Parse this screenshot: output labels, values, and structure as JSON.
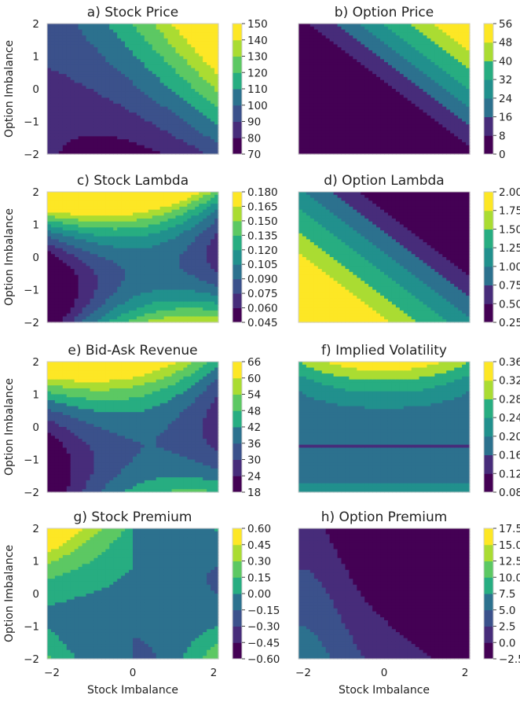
{
  "figure": {
    "x_axis_label": "Stock Imbalance",
    "y_axis_label": "Option Imbalance",
    "x_tick_labels": [
      "−2",
      "0",
      "2"
    ],
    "y_tick_labels": [
      "2",
      "1",
      "0",
      "−1",
      "−2"
    ]
  },
  "palette": [
    "#440154",
    "#472c7a",
    "#3b518b",
    "#2c718e",
    "#21908d",
    "#27ad81",
    "#5cc863",
    "#aadc32",
    "#fde725"
  ],
  "chart_data": [
    {
      "type": "contour",
      "title": "a) Stock Price",
      "xlabel": "",
      "ylabel": "Option Imbalance",
      "xlim": [
        -2,
        2
      ],
      "ylim": [
        -2,
        2
      ],
      "colorbar_ticks": [
        "150",
        "140",
        "130",
        "120",
        "110",
        "100",
        "90",
        "80",
        "70"
      ],
      "levels": [
        70,
        150
      ],
      "field": "stock_price"
    },
    {
      "type": "contour",
      "title": "b) Option Price",
      "xlabel": "",
      "ylabel": "",
      "xlim": [
        -2,
        2
      ],
      "ylim": [
        -2,
        2
      ],
      "colorbar_ticks": [
        "56",
        "48",
        "40",
        "32",
        "24",
        "16",
        "8",
        "0"
      ],
      "levels": [
        0,
        56
      ],
      "field": "option_price"
    },
    {
      "type": "contour",
      "title": "c) Stock Lambda",
      "xlabel": "",
      "ylabel": "Option Imbalance",
      "xlim": [
        -2,
        2
      ],
      "ylim": [
        -2,
        2
      ],
      "colorbar_ticks": [
        "0.180",
        "0.165",
        "0.150",
        "0.135",
        "0.120",
        "0.105",
        "0.090",
        "0.075",
        "0.060",
        "0.045"
      ],
      "levels": [
        0.045,
        0.18
      ],
      "field": "stock_lambda"
    },
    {
      "type": "contour",
      "title": "d) Option Lambda",
      "xlabel": "",
      "ylabel": "",
      "xlim": [
        -2,
        2
      ],
      "ylim": [
        -2,
        2
      ],
      "colorbar_ticks": [
        "2.00",
        "1.75",
        "1.50",
        "1.25",
        "1.00",
        "0.75",
        "0.50",
        "0.25"
      ],
      "levels": [
        0.25,
        2.0
      ],
      "field": "option_lambda"
    },
    {
      "type": "contour",
      "title": "e) Bid-Ask Revenue",
      "xlabel": "",
      "ylabel": "Option Imbalance",
      "xlim": [
        -2,
        2
      ],
      "ylim": [
        -2,
        2
      ],
      "colorbar_ticks": [
        "66",
        "60",
        "54",
        "48",
        "42",
        "36",
        "30",
        "24",
        "18"
      ],
      "levels": [
        18,
        66
      ],
      "field": "bid_ask"
    },
    {
      "type": "contour",
      "title": "f) Implied Volatility",
      "xlabel": "",
      "ylabel": "",
      "xlim": [
        -2,
        2
      ],
      "ylim": [
        -2,
        2
      ],
      "colorbar_ticks": [
        "0.36",
        "0.32",
        "0.28",
        "0.24",
        "0.20",
        "0.16",
        "0.12",
        "0.08"
      ],
      "levels": [
        0.08,
        0.36
      ],
      "field": "implied_vol"
    },
    {
      "type": "contour",
      "title": "g) Stock Premium",
      "xlabel": "Stock Imbalance",
      "ylabel": "Option Imbalance",
      "xlim": [
        -2,
        2
      ],
      "ylim": [
        -2,
        2
      ],
      "colorbar_ticks": [
        "0.60",
        "0.45",
        "0.30",
        "0.15",
        "0.00",
        "−0.15",
        "−0.30",
        "−0.45",
        "−0.60"
      ],
      "levels": [
        -0.6,
        0.6
      ],
      "field": "stock_premium"
    },
    {
      "type": "contour",
      "title": "h) Option Premium",
      "xlabel": "Stock Imbalance",
      "ylabel": "",
      "xlim": [
        -2,
        2
      ],
      "ylim": [
        -2,
        2
      ],
      "colorbar_ticks": [
        "17.5",
        "15.0",
        "12.5",
        "10.0",
        "7.5",
        "5.0",
        "2.5",
        "0.0",
        "−2.5"
      ],
      "levels": [
        -2.5,
        17.5
      ],
      "field": "option_premium"
    }
  ]
}
